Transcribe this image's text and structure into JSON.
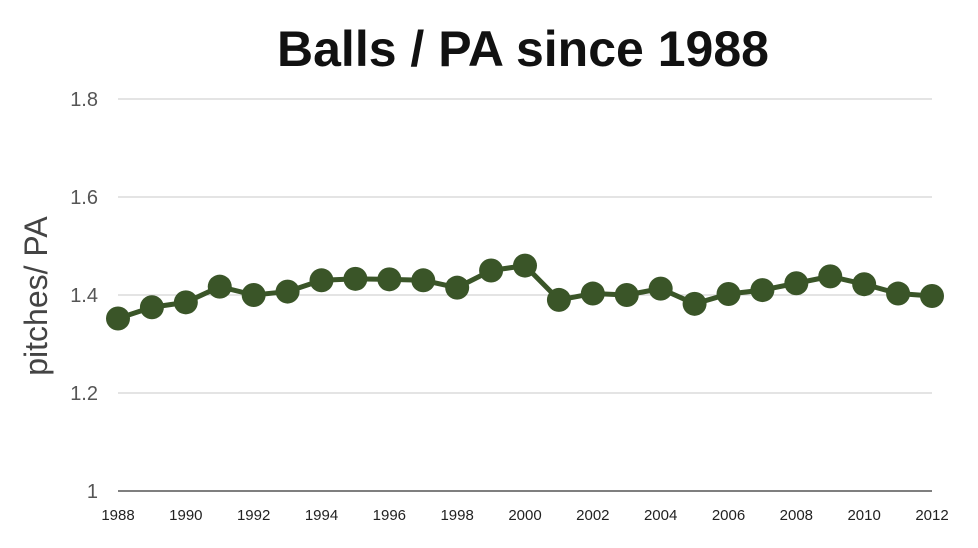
{
  "chart_data": {
    "type": "line",
    "title": "Balls / PA since 1988",
    "xlabel": "",
    "ylabel": "pitches/ PA",
    "ylim": [
      1,
      1.8
    ],
    "yticks": [
      "1",
      "1.2",
      "1.4",
      "1.6",
      "1.8"
    ],
    "xtick_labels": [
      "1988",
      "1990",
      "1992",
      "1994",
      "1996",
      "1998",
      "2000",
      "2002",
      "2004",
      "2006",
      "2008",
      "2010",
      "2012"
    ],
    "grid": true,
    "legend": "none",
    "color": "#3a5528",
    "x": [
      1988,
      1989,
      1990,
      1991,
      1992,
      1993,
      1994,
      1995,
      1996,
      1997,
      1998,
      1999,
      2000,
      2001,
      2002,
      2003,
      2004,
      2005,
      2006,
      2007,
      2008,
      2009,
      2010,
      2011,
      2012
    ],
    "series": [
      {
        "values": [
          1.352,
          1.375,
          1.385,
          1.417,
          1.4,
          1.407,
          1.43,
          1.433,
          1.432,
          1.43,
          1.415,
          1.45,
          1.46,
          1.39,
          1.403,
          1.4,
          1.413,
          1.382,
          1.402,
          1.41,
          1.424,
          1.438,
          1.422,
          1.403,
          1.398
        ]
      }
    ]
  }
}
